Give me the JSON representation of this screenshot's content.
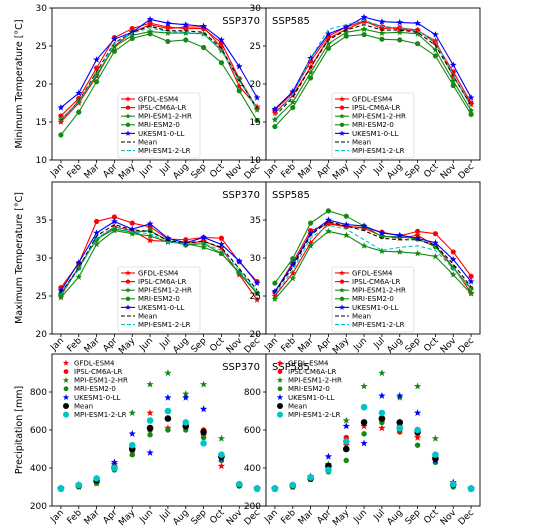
{
  "models": [
    {
      "name": "GFDL-ESM4",
      "color": "#ff0000",
      "marker": "star"
    },
    {
      "name": "IPSL-CM6A-LR",
      "color": "#ff0000",
      "marker": "circle"
    },
    {
      "name": "MPI-ESM1-2-HR",
      "color": "#138a13",
      "marker": "star"
    },
    {
      "name": "MRI-ESM2-0",
      "color": "#138a13",
      "marker": "circle"
    },
    {
      "name": "UKESM1-0-LL",
      "color": "#0000ff",
      "marker": "star"
    },
    {
      "name": "Mean",
      "color": "#000000",
      "marker": "dash"
    },
    {
      "name": "MPI-ESM1-2-LR",
      "color": "#00c5c5",
      "marker": "dash"
    }
  ],
  "chart_data": [
    {
      "type": "line",
      "title": "SSP370",
      "xlabel": "",
      "ylabel": "Minimum Temperature [°C]",
      "categories": [
        "Jan",
        "Feb",
        "Mar",
        "Apr",
        "May",
        "Jun",
        "Jul",
        "Aug",
        "Sep",
        "Oct",
        "Nov",
        "Dec"
      ],
      "ylim": [
        10,
        30
      ],
      "yticks": [
        10,
        15,
        20,
        25,
        30
      ],
      "legend": "lower-center",
      "series": [
        {
          "name": "GFDL-ESM4",
          "values": [
            15.0,
            17.5,
            21.0,
            25.0,
            26.8,
            27.8,
            27.3,
            27.5,
            27.5,
            24.8,
            19.7,
            17.0
          ]
        },
        {
          "name": "IPSL-CM6A-LR",
          "values": [
            15.8,
            18.1,
            22.1,
            26.1,
            27.3,
            28.0,
            27.5,
            27.3,
            27.3,
            25.4,
            20.7,
            16.8
          ]
        },
        {
          "name": "MPI-ESM1-2-HR",
          "values": [
            15.3,
            17.7,
            21.2,
            24.9,
            26.4,
            26.9,
            26.7,
            26.7,
            26.6,
            24.4,
            20.6,
            16.6
          ]
        },
        {
          "name": "MRI-ESM2-0",
          "values": [
            13.3,
            16.3,
            20.3,
            24.3,
            26.0,
            26.6,
            25.6,
            25.8,
            24.8,
            22.8,
            19.1,
            15.2
          ]
        },
        {
          "name": "UKESM1-0-LL",
          "values": [
            16.9,
            18.8,
            23.2,
            25.9,
            26.8,
            28.5,
            28.0,
            27.8,
            27.6,
            25.8,
            22.3,
            18.2
          ]
        },
        {
          "name": "Mean",
          "values": [
            15.3,
            17.7,
            21.6,
            25.4,
            26.8,
            27.6,
            27.0,
            27.0,
            26.8,
            24.7,
            20.5,
            16.8
          ]
        },
        {
          "name": "MPI-ESM1-2-LR",
          "values": [
            15.4,
            17.6,
            21.4,
            25.3,
            26.7,
            27.4,
            26.9,
            26.8,
            26.6,
            24.5,
            20.4,
            16.8
          ]
        }
      ]
    },
    {
      "type": "line",
      "title": "SSP585",
      "xlabel": "",
      "ylabel": "",
      "categories": [
        "Jan",
        "Feb",
        "Mar",
        "Apr",
        "May",
        "Jun",
        "Jul",
        "Aug",
        "Sep",
        "Oct",
        "Nov",
        "Dec"
      ],
      "ylim": [
        10,
        30
      ],
      "yticks": [
        10,
        15,
        20,
        25,
        30
      ],
      "legend": "lower-center",
      "series": [
        {
          "name": "GFDL-ESM4",
          "values": [
            16.2,
            18.5,
            22.2,
            26.0,
            27.2,
            28.2,
            27.6,
            27.2,
            27.0,
            25.7,
            21.0,
            17.3
          ]
        },
        {
          "name": "IPSL-CM6A-LR",
          "values": [
            16.6,
            18.8,
            23.0,
            26.3,
            27.5,
            28.3,
            27.3,
            27.4,
            27.1,
            25.4,
            21.6,
            17.5
          ]
        },
        {
          "name": "MPI-ESM1-2-HR",
          "values": [
            15.3,
            17.6,
            21.5,
            25.3,
            26.8,
            27.2,
            26.7,
            26.8,
            26.6,
            24.5,
            20.4,
            16.5
          ]
        },
        {
          "name": "MRI-ESM2-0",
          "values": [
            14.4,
            16.9,
            20.8,
            24.7,
            26.3,
            26.5,
            25.9,
            25.8,
            25.3,
            23.7,
            19.8,
            16.0
          ]
        },
        {
          "name": "UKESM1-0-LL",
          "values": [
            16.7,
            19.0,
            23.4,
            26.6,
            27.5,
            28.8,
            28.2,
            28.1,
            28.0,
            26.5,
            22.5,
            18.2
          ]
        },
        {
          "name": "Mean",
          "values": [
            15.8,
            18.2,
            22.2,
            25.8,
            27.1,
            27.8,
            27.1,
            27.1,
            26.8,
            25.1,
            21.1,
            17.1
          ]
        },
        {
          "name": "MPI-ESM1-2-LR",
          "values": [
            15.8,
            18.6,
            23.4,
            27.2,
            27.8,
            28.4,
            27.6,
            27.4,
            27.0,
            25.6,
            21.2,
            17.0
          ]
        }
      ]
    },
    {
      "type": "line",
      "title": "SSP370",
      "xlabel": "",
      "ylabel": "Maximum Temperature [°C]",
      "categories": [
        "Jan",
        "Feb",
        "Mar",
        "Apr",
        "May",
        "Jun",
        "Jul",
        "Aug",
        "Sep",
        "Oct",
        "Nov",
        "Dec"
      ],
      "ylim": [
        20,
        40
      ],
      "yticks": [
        20,
        25,
        30,
        35
      ],
      "legend": "lower-center",
      "series": [
        {
          "name": "GFDL-ESM4",
          "values": [
            25.0,
            28.8,
            32.4,
            34.1,
            33.6,
            32.3,
            32.2,
            31.9,
            32.2,
            31.3,
            27.8,
            24.5
          ]
        },
        {
          "name": "IPSL-CM6A-LR",
          "values": [
            26.1,
            29.3,
            34.8,
            35.4,
            34.6,
            34.1,
            32.5,
            32.4,
            32.7,
            32.6,
            29.5,
            26.9
          ]
        },
        {
          "name": "MPI-ESM1-2-HR",
          "values": [
            24.8,
            27.5,
            31.8,
            33.6,
            33.2,
            32.9,
            32.1,
            31.9,
            31.4,
            30.6,
            28.0,
            25.3
          ]
        },
        {
          "name": "MRI-ESM2-0",
          "values": [
            25.3,
            28.7,
            32.5,
            33.8,
            33.4,
            33.6,
            32.3,
            31.7,
            31.9,
            30.6,
            28.1,
            25.4
          ]
        },
        {
          "name": "UKESM1-0-LL",
          "values": [
            25.7,
            29.4,
            33.3,
            34.8,
            33.8,
            34.5,
            32.6,
            32.0,
            32.7,
            31.8,
            29.6,
            26.7
          ]
        },
        {
          "name": "Mean",
          "values": [
            25.4,
            28.7,
            32.9,
            34.4,
            33.7,
            33.5,
            32.3,
            32.0,
            32.2,
            31.4,
            28.6,
            25.8
          ]
        },
        {
          "name": "MPI-ESM1-2-LR",
          "values": [
            25.2,
            28.5,
            32.6,
            34.1,
            33.4,
            33.2,
            32.1,
            31.9,
            31.9,
            31.0,
            28.4,
            25.5
          ]
        }
      ]
    },
    {
      "type": "line",
      "title": "SSP585",
      "xlabel": "",
      "ylabel": "",
      "categories": [
        "Jan",
        "Feb",
        "Mar",
        "Apr",
        "May",
        "Jun",
        "Jul",
        "Aug",
        "Sep",
        "Oct",
        "Nov",
        "Dec"
      ],
      "ylim": [
        20,
        40
      ],
      "yticks": [
        20,
        25,
        30,
        35
      ],
      "legend": "lower-center",
      "series": [
        {
          "name": "GFDL-ESM4",
          "values": [
            25.0,
            28.0,
            32.0,
            34.6,
            34.2,
            33.9,
            32.9,
            32.6,
            33.0,
            31.6,
            28.8,
            25.4
          ]
        },
        {
          "name": "IPSL-CM6A-LR",
          "values": [
            25.5,
            29.4,
            33.6,
            34.5,
            34.1,
            34.0,
            33.4,
            32.9,
            33.5,
            33.2,
            30.8,
            27.6
          ]
        },
        {
          "name": "MPI-ESM1-2-HR",
          "values": [
            24.6,
            27.3,
            31.6,
            33.5,
            33.0,
            31.6,
            30.9,
            30.8,
            30.6,
            30.2,
            27.8,
            25.3
          ]
        },
        {
          "name": "MRI-ESM2-0",
          "values": [
            26.7,
            29.9,
            34.6,
            36.2,
            35.5,
            34.2,
            32.8,
            32.8,
            32.5,
            31.5,
            28.7,
            26.0
          ]
        },
        {
          "name": "UKESM1-0-LL",
          "values": [
            25.6,
            29.1,
            33.2,
            35.0,
            34.4,
            34.2,
            33.3,
            33.0,
            32.6,
            32.0,
            29.8,
            26.9
          ]
        },
        {
          "name": "Mean",
          "values": [
            25.5,
            28.8,
            33.0,
            34.8,
            34.2,
            33.6,
            32.6,
            32.4,
            32.4,
            31.7,
            29.2,
            26.2
          ]
        },
        {
          "name": "MPI-ESM1-2-LR",
          "values": [
            25.2,
            28.4,
            32.6,
            34.3,
            33.8,
            32.4,
            31.0,
            31.4,
            31.6,
            31.0,
            28.6,
            25.8
          ]
        }
      ]
    },
    {
      "type": "scatter",
      "title": "SSP370",
      "xlabel": "",
      "ylabel": "Precipitation [mm]",
      "categories": [
        "Jan",
        "Feb",
        "Mar",
        "Apr",
        "May",
        "Jun",
        "Jul",
        "Aug",
        "Sep",
        "Oct",
        "Nov",
        "Dec"
      ],
      "ylim": [
        200,
        1000
      ],
      "yticks": [
        200,
        400,
        600,
        800
      ],
      "legend": "upper-left",
      "series": [
        {
          "name": "GFDL-ESM4",
          "values": [
            292,
            305,
            318,
            420,
            500,
            690,
            610,
            620,
            570,
            410,
            310,
            292
          ]
        },
        {
          "name": "IPSL-CM6A-LR",
          "values": [
            292,
            308,
            325,
            400,
            490,
            600,
            660,
            630,
            600,
            470,
            318,
            292
          ]
        },
        {
          "name": "MPI-ESM1-2-HR",
          "values": [
            292,
            300,
            330,
            410,
            690,
            840,
            900,
            790,
            840,
            555,
            310,
            292
          ]
        },
        {
          "name": "MRI-ESM2-0",
          "values": [
            290,
            302,
            320,
            390,
            470,
            575,
            600,
            600,
            560,
            440,
            305,
            290
          ]
        },
        {
          "name": "UKESM1-0-LL",
          "values": [
            292,
            312,
            340,
            430,
            580,
            480,
            770,
            770,
            710,
            450,
            312,
            292
          ]
        },
        {
          "name": "Mean",
          "values": [
            292,
            308,
            335,
            400,
            500,
            610,
            660,
            620,
            590,
            460,
            312,
            292
          ]
        },
        {
          "name": "MPI-ESM1-2-LR",
          "values": [
            292,
            310,
            345,
            400,
            520,
            650,
            700,
            640,
            530,
            470,
            315,
            292
          ]
        }
      ]
    },
    {
      "type": "scatter",
      "title": "SSP585",
      "xlabel": "",
      "ylabel": "",
      "categories": [
        "Jan",
        "Feb",
        "Mar",
        "Apr",
        "May",
        "Jun",
        "Jul",
        "Aug",
        "Sep",
        "Oct",
        "Nov",
        "Dec"
      ],
      "ylim": [
        200,
        1000
      ],
      "yticks": [
        200,
        400,
        600,
        800
      ],
      "legend": "upper-left",
      "series": [
        {
          "name": "GFDL-ESM4",
          "values": [
            292,
            305,
            355,
            410,
            520,
            620,
            610,
            620,
            560,
            450,
            310,
            292
          ]
        },
        {
          "name": "IPSL-CM6A-LR",
          "values": [
            292,
            305,
            345,
            400,
            560,
            640,
            650,
            590,
            580,
            460,
            318,
            292
          ]
        },
        {
          "name": "MPI-ESM1-2-HR",
          "values": [
            292,
            300,
            340,
            420,
            650,
            830,
            900,
            770,
            830,
            555,
            310,
            292
          ]
        },
        {
          "name": "MRI-ESM2-0",
          "values": [
            290,
            300,
            340,
            380,
            440,
            580,
            640,
            600,
            520,
            430,
            300,
            290
          ]
        },
        {
          "name": "UKESM1-0-LL",
          "values": [
            292,
            310,
            355,
            460,
            620,
            530,
            780,
            780,
            690,
            440,
            325,
            292
          ]
        },
        {
          "name": "Mean",
          "values": [
            292,
            308,
            345,
            410,
            500,
            640,
            660,
            640,
            590,
            450,
            312,
            292
          ]
        },
        {
          "name": "MPI-ESM1-2-LR",
          "values": [
            292,
            310,
            350,
            390,
            540,
            720,
            690,
            610,
            600,
            470,
            315,
            292
          ]
        }
      ]
    }
  ]
}
